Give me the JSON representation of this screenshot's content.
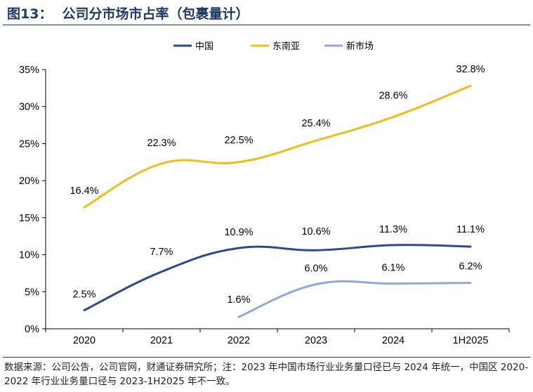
{
  "header": {
    "figure_label": "图13：",
    "title": "公司分市场市占率（包裹量计）"
  },
  "footer": {
    "note": "数据来源：公司公告，公司官网，财通证券研究所；注：2023 年中国市场行业业务量口径已与 2024 年统一，中国区 2020-2022 年行业业务量口径与 2023-1H2025 年不一致。"
  },
  "colors": {
    "china": "#2e4a8f",
    "sea": "#f0be19",
    "new_markets": "#91a9d9",
    "axis": "#000000",
    "title": "#1f3864"
  },
  "chart_data": {
    "type": "line",
    "title": "公司分市场市占率（包裹量计）",
    "xlabel": "",
    "ylabel": "",
    "categories": [
      "2020",
      "2021",
      "2022",
      "2023",
      "2024",
      "1H2025"
    ],
    "ylim": [
      0,
      35
    ],
    "yticks": [
      0,
      5,
      10,
      15,
      20,
      25,
      30,
      35
    ],
    "ytick_labels": [
      "0%",
      "5%",
      "10%",
      "15%",
      "20%",
      "25%",
      "30%",
      "35%"
    ],
    "grid": false,
    "legend_position": "top-center",
    "smooth": true,
    "series": [
      {
        "key": "china",
        "name": "中国",
        "values": [
          2.5,
          7.7,
          10.9,
          10.6,
          11.3,
          11.1
        ],
        "labels": [
          "2.5%",
          "7.7%",
          "10.9%",
          "10.6%",
          "11.3%",
          "11.1%"
        ]
      },
      {
        "key": "sea",
        "name": "东南亚",
        "values": [
          16.4,
          22.3,
          22.5,
          25.4,
          28.6,
          32.8
        ],
        "labels": [
          "16.4%",
          "22.3%",
          "22.5%",
          "25.4%",
          "28.6%",
          "32.8%"
        ]
      },
      {
        "key": "new_markets",
        "name": "新市场",
        "values": [
          null,
          null,
          1.6,
          6.0,
          6.1,
          6.2
        ],
        "labels": [
          null,
          null,
          "1.6%",
          "6.0%",
          "6.1%",
          "6.2%"
        ]
      }
    ]
  }
}
